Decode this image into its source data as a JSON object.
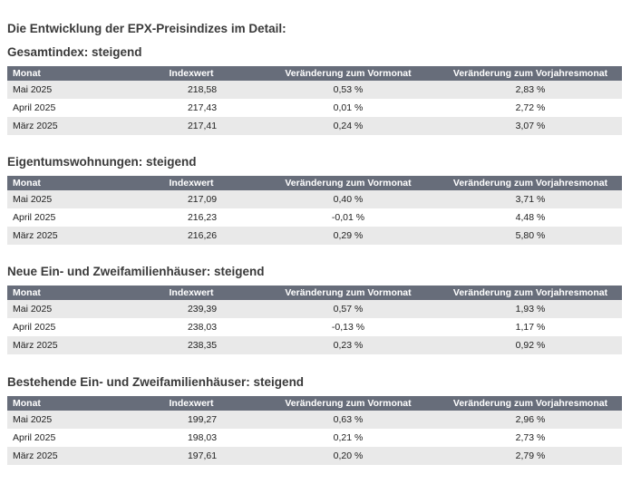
{
  "title": "Die Entwicklung der EPX-Preisindizes im Detail:",
  "columns": [
    "Monat",
    "Indexwert",
    "Veränderung zum Vormonat",
    "Veränderung zum Vorjahresmonat"
  ],
  "sections": [
    {
      "title": "Gesamtindex: steigend",
      "rows": [
        {
          "month": "Mai 2025",
          "index": "218,58",
          "mom": "0,53 %",
          "yoy": "2,83 %"
        },
        {
          "month": "April 2025",
          "index": "217,43",
          "mom": "0,01 %",
          "yoy": "2,72 %"
        },
        {
          "month": "März 2025",
          "index": "217,41",
          "mom": "0,24 %",
          "yoy": "3,07 %"
        }
      ]
    },
    {
      "title": "Eigentumswohnungen: steigend",
      "rows": [
        {
          "month": "Mai 2025",
          "index": "217,09",
          "mom": "0,40 %",
          "yoy": "3,71 %"
        },
        {
          "month": "April 2025",
          "index": "216,23",
          "mom": "-0,01 %",
          "yoy": "4,48 %"
        },
        {
          "month": "März 2025",
          "index": "216,26",
          "mom": "0,29 %",
          "yoy": "5,80 %"
        }
      ]
    },
    {
      "title": "Neue Ein- und Zweifamilienhäuser: steigend",
      "rows": [
        {
          "month": "Mai 2025",
          "index": "239,39",
          "mom": "0,57 %",
          "yoy": "1,93 %"
        },
        {
          "month": "April 2025",
          "index": "238,03",
          "mom": "-0,13 %",
          "yoy": "1,17 %"
        },
        {
          "month": "März 2025",
          "index": "238,35",
          "mom": "0,23 %",
          "yoy": "0,92 %"
        }
      ]
    },
    {
      "title": "Bestehende Ein- und Zweifamilienhäuser: steigend",
      "rows": [
        {
          "month": "Mai 2025",
          "index": "199,27",
          "mom": "0,63 %",
          "yoy": "2,96 %"
        },
        {
          "month": "April 2025",
          "index": "198,03",
          "mom": "0,21 %",
          "yoy": "2,73 %"
        },
        {
          "month": "März 2025",
          "index": "197,61",
          "mom": "0,20 %",
          "yoy": "2,79 %"
        }
      ]
    }
  ]
}
